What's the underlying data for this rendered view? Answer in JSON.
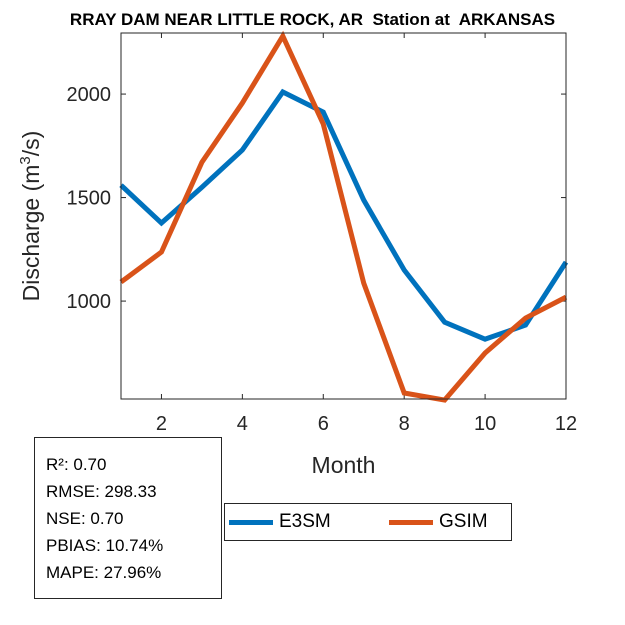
{
  "chart_data": {
    "type": "line",
    "title": "RRAY DAM NEAR LITTLE ROCK, AR  Station at  ARKANSAS",
    "xlabel": "Month",
    "ylabel": "Discharge (m³/s)",
    "ylabel_base": "Discharge (m",
    "ylabel_sup": "3",
    "ylabel_tail": "/s)",
    "xlim": [
      1,
      12
    ],
    "ylim": [
      527,
      2295
    ],
    "xticks": [
      2,
      4,
      6,
      8,
      10,
      12
    ],
    "yticks": [
      1000,
      1500,
      2000
    ],
    "x": [
      1,
      2,
      3,
      4,
      5,
      6,
      7,
      8,
      9,
      10,
      11,
      12
    ],
    "series": [
      {
        "name": "E3SM",
        "color": "#0072BD",
        "values": [
          1560,
          1377,
          1550,
          1730,
          2010,
          1913,
          1488,
          1150,
          898,
          816,
          884,
          1188
        ]
      },
      {
        "name": "GSIM",
        "color": "#D95319",
        "values": [
          1092,
          1237,
          1671,
          1957,
          2280,
          1855,
          1087,
          556,
          522,
          749,
          918,
          1019
        ]
      }
    ],
    "legend_position": "bottom"
  },
  "stats": [
    "R²: 0.70",
    "RMSE: 298.33",
    "NSE: 0.70",
    "PBIAS: 10.74%",
    "MAPE: 27.96%"
  ]
}
